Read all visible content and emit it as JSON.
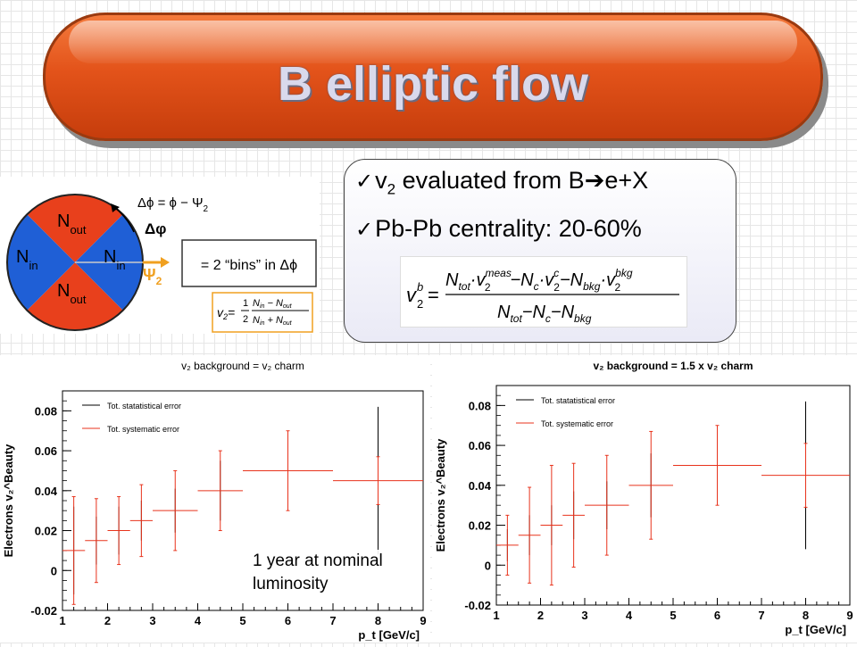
{
  "slide": {
    "title": "B elliptic flow",
    "bullet1_v": "v",
    "bullet1_sub": "2",
    "bullet1_text": " evaluated from B",
    "bullet1_arrow": "➔",
    "bullet1_end": "e+X",
    "bullet2_text": "Pb-Pb centrality: 20-60%",
    "annotation_line1": "1 year at nominal",
    "annotation_line2": "luminosity"
  },
  "diagram": {
    "n_out_top": "N",
    "n_out_top_sub": "out",
    "n_out_bottom": "N",
    "n_out_bottom_sub": "out",
    "n_in_left": "N",
    "n_in_left_sub": "in",
    "n_in_right": "N",
    "n_in_right_sub": "in",
    "dphi_eq": "Δϕ = ϕ − Ψ",
    "dphi_eq_sub": "2",
    "dphi_label": "Δφ",
    "psi_label": "Ψ",
    "psi_sub": "2",
    "bins_label": "= 2 “bins” in Δϕ",
    "colors": {
      "out": "#e8401c",
      "in": "#1f5fd6",
      "psi": "#f0a020"
    }
  },
  "formulas": {
    "v2_lhs": "v",
    "v2_lhs_sub": "2",
    "v2_eq": "=",
    "v2_half_num": "1",
    "v2_half_den": "2",
    "v2_num": "N",
    "v2_num_sub1": "in",
    "v2_num_minus": " − N",
    "v2_num_sub2": "out",
    "v2_den": "N",
    "v2_den_sub1": "in",
    "v2_den_plus": " + N",
    "v2_den_sub2": "out",
    "vb_lhs": "v",
    "vb_sup": "b",
    "vb_sub": "2",
    "vb_eq": "=",
    "vb_num_a": "N",
    "vb_num_a_sub": "tot",
    "vb_num_b": "·v",
    "vb_num_b_sup": "meas",
    "vb_num_b_sub": "2",
    "vb_num_c": "−N",
    "vb_num_c_sub": "c",
    "vb_num_d": "·v",
    "vb_num_d_sup": "c",
    "vb_num_d_sub": "2",
    "vb_num_e": "−N",
    "vb_num_e_sub": "bkg",
    "vb_num_f": "·v",
    "vb_num_f_sup": "bkg",
    "vb_num_f_sub": "2",
    "vb_den_a": "N",
    "vb_den_a_sub": "tot",
    "vb_den_b": "−N",
    "vb_den_b_sub": "c",
    "vb_den_c": "−N",
    "vb_den_c_sub": "bkg"
  },
  "chart_data": [
    {
      "type": "scatter",
      "title": "v₂ background = v₂ charm",
      "xlabel": "p_t [GeV/c]",
      "ylabel": "Electrons v₂^Beauty",
      "xlim": [
        1,
        9
      ],
      "ylim": [
        -0.02,
        0.09
      ],
      "xticks": [
        "1",
        "2",
        "3",
        "4",
        "5",
        "6",
        "7",
        "8",
        "9"
      ],
      "yticks": [
        "-0.02",
        "0",
        "0.02",
        "0.04",
        "0.06",
        "0.08"
      ],
      "legend": [
        "Tot. statatistical error",
        "Tot. systematic error"
      ],
      "legend_position": "top-left",
      "colors": {
        "stat": "#000000",
        "syst": "#e8331c"
      },
      "points": [
        {
          "x": 1.25,
          "xerr": 0.25,
          "y": 0.01,
          "stat": 0.022,
          "syst": 0.027
        },
        {
          "x": 1.75,
          "xerr": 0.25,
          "y": 0.015,
          "stat": 0.012,
          "syst": 0.021
        },
        {
          "x": 2.25,
          "xerr": 0.25,
          "y": 0.02,
          "stat": 0.012,
          "syst": 0.017
        },
        {
          "x": 2.75,
          "xerr": 0.25,
          "y": 0.025,
          "stat": 0.01,
          "syst": 0.018
        },
        {
          "x": 3.5,
          "xerr": 0.5,
          "y": 0.03,
          "stat": 0.011,
          "syst": 0.02
        },
        {
          "x": 4.5,
          "xerr": 0.5,
          "y": 0.04,
          "stat": 0.015,
          "syst": 0.02
        },
        {
          "x": 6.0,
          "xerr": 1.0,
          "y": 0.05,
          "stat": 0.018,
          "syst": 0.02
        },
        {
          "x": 8.0,
          "xerr": 1.0,
          "y": 0.045,
          "stat": 0.037,
          "syst": 0.012
        }
      ]
    },
    {
      "type": "scatter",
      "title": "v₂ background = 1.5 x v₂ charm",
      "xlabel": "p_t [GeV/c]",
      "ylabel": "Electrons v₂^Beauty",
      "xlim": [
        1,
        9
      ],
      "ylim": [
        -0.02,
        0.09
      ],
      "xticks": [
        "1",
        "2",
        "3",
        "4",
        "5",
        "6",
        "7",
        "8",
        "9"
      ],
      "yticks": [
        "-0.02",
        "0",
        "0.02",
        "0.04",
        "0.06",
        "0.08"
      ],
      "legend": [
        "Tot. statatistical error",
        "Tot. systematic error"
      ],
      "legend_position": "top-left",
      "colors": {
        "stat": "#000000",
        "syst": "#e8331c"
      },
      "points": [
        {
          "x": 1.25,
          "xerr": 0.25,
          "y": 0.01,
          "stat": 0.008,
          "syst": 0.015
        },
        {
          "x": 1.75,
          "xerr": 0.25,
          "y": 0.015,
          "stat": 0.01,
          "syst": 0.024
        },
        {
          "x": 2.25,
          "xerr": 0.25,
          "y": 0.02,
          "stat": 0.01,
          "syst": 0.03
        },
        {
          "x": 2.75,
          "xerr": 0.25,
          "y": 0.025,
          "stat": 0.012,
          "syst": 0.026
        },
        {
          "x": 3.5,
          "xerr": 0.5,
          "y": 0.03,
          "stat": 0.012,
          "syst": 0.025
        },
        {
          "x": 4.5,
          "xerr": 0.5,
          "y": 0.04,
          "stat": 0.016,
          "syst": 0.027
        },
        {
          "x": 6.0,
          "xerr": 1.0,
          "y": 0.05,
          "stat": 0.019,
          "syst": 0.02
        },
        {
          "x": 8.0,
          "xerr": 1.0,
          "y": 0.045,
          "stat": 0.037,
          "syst": 0.016
        }
      ]
    }
  ]
}
